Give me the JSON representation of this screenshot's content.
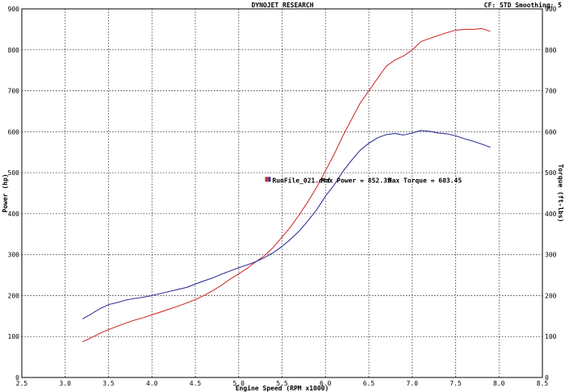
{
  "header": {
    "title": "DYNOJET RESEARCH",
    "cf_label": "CF: STD   Smoothing: 5"
  },
  "chart_data": {
    "type": "line",
    "title": "DYNOJET RESEARCH",
    "xlabel": "Engine Speed (RPM x1000)",
    "ylabel": "Power (hp)",
    "ylabel_right": "Torque (ft-lbs)",
    "xlim": [
      2.5,
      8.5
    ],
    "ylim": [
      0,
      900
    ],
    "ylim_right": [
      0,
      900
    ],
    "x_ticks": [
      "2.5",
      "3.0",
      "3.5",
      "4.0",
      "4.5",
      "5.0",
      "5.5",
      "6.0",
      "6.5",
      "7.0",
      "7.5",
      "8.0",
      "8.5"
    ],
    "y_ticks": [
      "0",
      "100",
      "200",
      "300",
      "400",
      "500",
      "600",
      "700",
      "800",
      "900"
    ],
    "grid": true,
    "legend": {
      "run_file": "RunFile_021.drf",
      "max_power_text": "Max Power = 852.35",
      "max_torque_text": "Max Torque = 603.45",
      "swatch_colors": [
        "#cc3333",
        "#333399"
      ]
    },
    "series": [
      {
        "key": "power",
        "color": "#cc3333",
        "x": [
          3.2,
          3.3,
          3.4,
          3.5,
          3.6,
          3.7,
          3.8,
          3.9,
          4.0,
          4.1,
          4.2,
          4.3,
          4.4,
          4.5,
          4.6,
          4.7,
          4.8,
          4.9,
          5.0,
          5.1,
          5.2,
          5.3,
          5.4,
          5.5,
          5.6,
          5.7,
          5.8,
          5.9,
          6.0,
          6.1,
          6.2,
          6.3,
          6.4,
          6.5,
          6.6,
          6.7,
          6.8,
          6.9,
          7.0,
          7.1,
          7.2,
          7.3,
          7.4,
          7.5,
          7.6,
          7.7,
          7.8,
          7.9
        ],
        "values": [
          87,
          97,
          108,
          117,
          125,
          133,
          140,
          146,
          153,
          160,
          167,
          174,
          182,
          190,
          200,
          212,
          225,
          240,
          253,
          267,
          283,
          298,
          318,
          343,
          368,
          398,
          430,
          465,
          505,
          545,
          590,
          630,
          670,
          700,
          730,
          760,
          775,
          785,
          800,
          820,
          828,
          835,
          842,
          848,
          850,
          850,
          852,
          845
        ]
      },
      {
        "key": "torque",
        "color": "#333399",
        "x": [
          3.2,
          3.3,
          3.4,
          3.5,
          3.6,
          3.7,
          3.8,
          3.9,
          4.0,
          4.1,
          4.2,
          4.3,
          4.4,
          4.5,
          4.6,
          4.7,
          4.8,
          4.9,
          5.0,
          5.1,
          5.2,
          5.3,
          5.4,
          5.5,
          5.6,
          5.7,
          5.8,
          5.9,
          6.0,
          6.1,
          6.2,
          6.3,
          6.4,
          6.5,
          6.6,
          6.7,
          6.8,
          6.9,
          7.0,
          7.1,
          7.2,
          7.3,
          7.4,
          7.5,
          7.6,
          7.7,
          7.8,
          7.9
        ],
        "values": [
          143,
          155,
          168,
          178,
          183,
          189,
          193,
          196,
          200,
          205,
          210,
          215,
          220,
          228,
          236,
          243,
          252,
          260,
          268,
          275,
          283,
          293,
          305,
          320,
          338,
          358,
          383,
          410,
          443,
          470,
          503,
          530,
          555,
          572,
          585,
          593,
          596,
          592,
          597,
          603,
          601,
          597,
          595,
          590,
          583,
          577,
          570,
          562
        ]
      }
    ]
  }
}
